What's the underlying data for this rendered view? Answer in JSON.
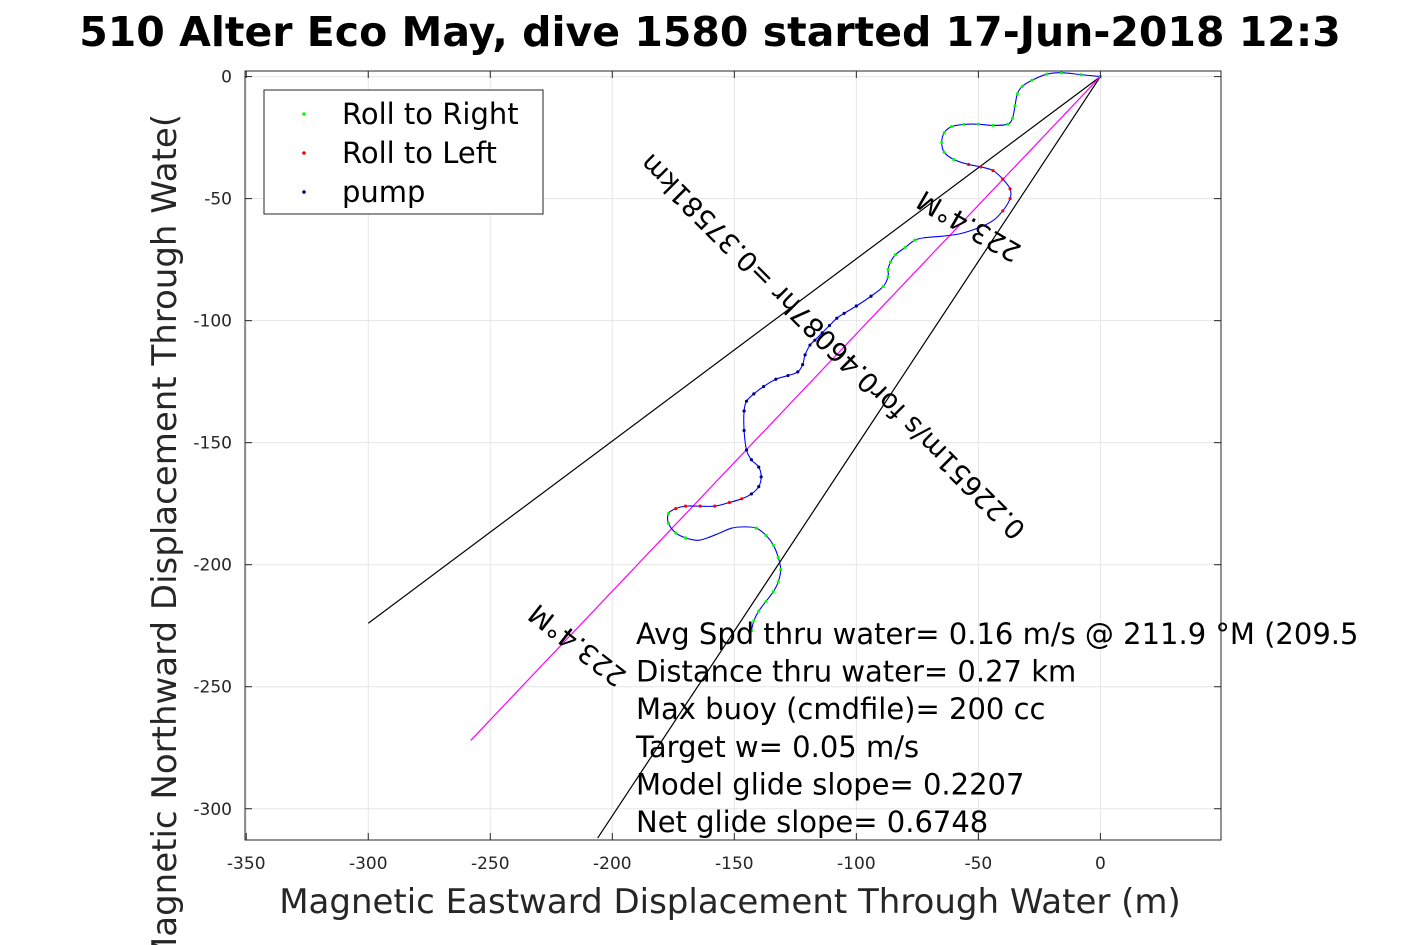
{
  "chart_data": {
    "type": "scatter",
    "title": "510 Alter Eco May, dive 1580 started 17-Jun-2018 12:3",
    "xlabel": "Magnetic Eastward Displacement Through Water (m)",
    "ylabel": "Magnetic Northward Displacement Through Wate(",
    "xlim": [
      -350,
      50
    ],
    "ylim": [
      -313,
      2
    ],
    "x_ticks": [
      -350,
      -300,
      -250,
      -200,
      -150,
      -100,
      -50,
      0
    ],
    "y_ticks": [
      0,
      -50,
      -100,
      -150,
      -200,
      -250,
      -300
    ],
    "grid": true,
    "legend_position": "top-left",
    "legend": [
      {
        "label": "Roll to Right",
        "color": "#00ff00"
      },
      {
        "label": "Roll to Left",
        "color": "#ff0000"
      },
      {
        "label": "pump",
        "color": "#000080"
      }
    ],
    "track": {
      "color": "#0000ff",
      "points": [
        [
          0,
          0
        ],
        [
          -8,
          0.8
        ],
        [
          -16,
          1.6
        ],
        [
          -22,
          1
        ],
        [
          -28,
          -1.5
        ],
        [
          -32,
          -4
        ],
        [
          -34,
          -7
        ],
        [
          -35,
          -12
        ],
        [
          -36,
          -17
        ],
        [
          -38,
          -19.5
        ],
        [
          -44,
          -20
        ],
        [
          -50,
          -19.5
        ],
        [
          -56,
          -19.6
        ],
        [
          -61,
          -20.5
        ],
        [
          -64,
          -23
        ],
        [
          -65,
          -27
        ],
        [
          -64,
          -31
        ],
        [
          -60,
          -34
        ],
        [
          -54,
          -36
        ],
        [
          -49,
          -37
        ],
        [
          -44,
          -38.5
        ],
        [
          -40,
          -42
        ],
        [
          -37,
          -46
        ],
        [
          -37,
          -50
        ],
        [
          -40,
          -55
        ],
        [
          -44,
          -59
        ],
        [
          -50,
          -62
        ],
        [
          -58,
          -64.5
        ],
        [
          -66,
          -65.5
        ],
        [
          -72,
          -66
        ],
        [
          -76,
          -67
        ],
        [
          -80,
          -70
        ],
        [
          -84,
          -73
        ],
        [
          -86,
          -76
        ],
        [
          -87,
          -79
        ],
        [
          -87,
          -82
        ],
        [
          -89,
          -86
        ],
        [
          -94,
          -90
        ],
        [
          -100,
          -94
        ],
        [
          -105,
          -97
        ],
        [
          -108,
          -99
        ],
        [
          -111,
          -102
        ],
        [
          -114,
          -105
        ],
        [
          -117,
          -108
        ],
        [
          -119,
          -110
        ],
        [
          -121,
          -114
        ],
        [
          -122,
          -118
        ],
        [
          -124,
          -121
        ],
        [
          -128,
          -122.5
        ],
        [
          -133,
          -124
        ],
        [
          -138,
          -127
        ],
        [
          -142,
          -130
        ],
        [
          -145,
          -133
        ],
        [
          -146,
          -137
        ],
        [
          -146,
          -145
        ],
        [
          -145,
          -153
        ],
        [
          -143,
          -157
        ],
        [
          -140,
          -160
        ],
        [
          -139,
          -164
        ],
        [
          -140,
          -168
        ],
        [
          -143,
          -171
        ],
        [
          -147,
          -173
        ],
        [
          -152,
          -174.5
        ],
        [
          -158,
          -176
        ],
        [
          -164,
          -176
        ],
        [
          -170,
          -176
        ],
        [
          -174,
          -177
        ],
        [
          -177,
          -179
        ],
        [
          -177,
          -183
        ],
        [
          -174,
          -187
        ],
        [
          -170,
          -189
        ],
        [
          -165,
          -190
        ],
        [
          -161,
          -189
        ],
        [
          -156,
          -187
        ],
        [
          -151,
          -185
        ],
        [
          -146,
          -184.5
        ],
        [
          -141,
          -185
        ],
        [
          -137,
          -188
        ],
        [
          -134,
          -192
        ],
        [
          -132,
          -197
        ],
        [
          -131,
          -202
        ],
        [
          -132,
          -207
        ],
        [
          -134,
          -211
        ],
        [
          -137,
          -215
        ],
        [
          -140,
          -219
        ],
        [
          -142,
          -223
        ],
        [
          -143,
          -227
        ]
      ]
    },
    "roll_right_range": [
      [
        0,
        18
      ],
      [
        30,
        42
      ],
      [
        47,
        53
      ],
      [
        60,
        70
      ],
      [
        76,
        92
      ]
    ],
    "roll_left_range": [
      [
        18,
        24
      ],
      [
        54,
        60
      ],
      [
        60,
        66
      ]
    ],
    "pump_range": [
      [
        37,
        52
      ],
      [
        53,
        60
      ]
    ],
    "lines": [
      {
        "name": "",
        "color": "#000000",
        "from": [
          0,
          0
        ],
        "to": [
          -300,
          -224
        ]
      },
      {
        "name": "",
        "color": "#000000",
        "from": [
          0,
          0
        ],
        "to": [
          -206,
          -312
        ]
      },
      {
        "name": "",
        "color": "#ff00ff",
        "from": [
          0,
          0
        ],
        "to": [
          -258,
          -272
        ]
      }
    ],
    "annotations": [
      {
        "text": "223.4°M",
        "x": -52,
        "y": -58,
        "rotation": 210
      },
      {
        "text": "0.22651m/s for0.46087hr =0.37581km",
        "x": -107,
        "y": -108,
        "rotation": 225
      },
      {
        "text": "223.4°M",
        "x": -212,
        "y": -230,
        "rotation": 218
      }
    ],
    "stats": [
      "Avg Spd thru water=  0.16 m/s @ 211.9 °M (209.5",
      "Distance thru water=  0.27 km",
      "Max buoy (cmdfile)= 200 cc",
      "Target w= 0.05 m/s",
      "Model glide slope= 0.2207",
      "Net glide slope= 0.6748"
    ]
  }
}
